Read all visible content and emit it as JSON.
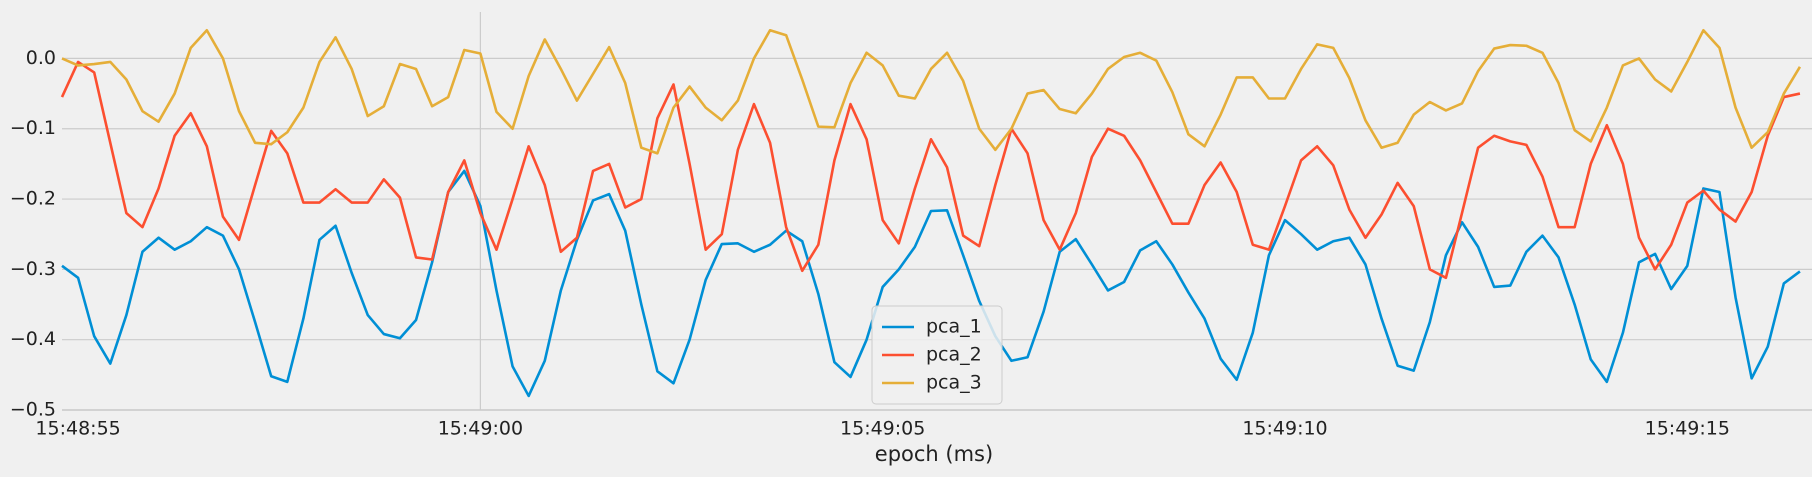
{
  "chart_data": {
    "type": "line",
    "x_label": "epoch (ms)",
    "x": [
      "15:48:54.8",
      "15:48:55.0",
      "15:48:55.2",
      "15:48:55.4",
      "15:48:55.6",
      "15:48:55.8",
      "15:48:56.0",
      "15:48:56.2",
      "15:48:56.4",
      "15:48:56.6",
      "15:48:56.8",
      "15:48:57.0",
      "15:48:57.2",
      "15:48:57.4",
      "15:48:57.6",
      "15:48:57.8",
      "15:48:58.0",
      "15:48:58.2",
      "15:48:58.4",
      "15:48:58.6",
      "15:48:58.8",
      "15:48:59.0",
      "15:48:59.2",
      "15:48:59.4",
      "15:48:59.6",
      "15:48:59.8",
      "15:49:00.0",
      "15:49:00.2",
      "15:49:00.4",
      "15:49:00.6",
      "15:49:00.8",
      "15:49:01.0",
      "15:49:01.2",
      "15:49:01.4",
      "15:49:01.6",
      "15:49:01.8",
      "15:49:02.0",
      "15:49:02.2",
      "15:49:02.4",
      "15:49:02.6",
      "15:49:02.8",
      "15:49:03.0",
      "15:49:03.2",
      "15:49:03.4",
      "15:49:03.6",
      "15:49:03.8",
      "15:49:04.0",
      "15:49:04.2",
      "15:49:04.4",
      "15:49:04.6",
      "15:49:04.8",
      "15:49:05.0",
      "15:49:05.2",
      "15:49:05.4",
      "15:49:05.6",
      "15:49:05.8",
      "15:49:06.0",
      "15:49:06.2",
      "15:49:06.4",
      "15:49:06.6",
      "15:49:06.8",
      "15:49:07.0",
      "15:49:07.2",
      "15:49:07.4",
      "15:49:07.6",
      "15:49:07.8",
      "15:49:08.0",
      "15:49:08.2",
      "15:49:08.4",
      "15:49:08.6",
      "15:49:08.8",
      "15:49:09.0",
      "15:49:09.2",
      "15:49:09.4",
      "15:49:09.6",
      "15:49:09.8",
      "15:49:10.0",
      "15:49:10.2",
      "15:49:10.4",
      "15:49:10.6",
      "15:49:10.8",
      "15:49:11.0",
      "15:49:11.2",
      "15:49:11.4",
      "15:49:11.6",
      "15:49:11.8",
      "15:49:12.0",
      "15:49:12.2",
      "15:49:12.4",
      "15:49:12.6",
      "15:49:12.8",
      "15:49:13.0",
      "15:49:13.2",
      "15:49:13.4",
      "15:49:13.6",
      "15:49:13.8",
      "15:49:14.0",
      "15:49:14.2",
      "15:49:14.4",
      "15:49:14.6",
      "15:49:14.8",
      "15:49:15.0",
      "15:49:15.2",
      "15:49:15.4",
      "15:49:15.6",
      "15:49:15.8",
      "15:49:16.0",
      "15:49:16.2",
      "15:49:16.4"
    ],
    "series": [
      {
        "name": "pca_1",
        "color": "#008fd5",
        "values": [
          -0.295,
          -0.312,
          -0.395,
          -0.434,
          -0.365,
          -0.275,
          -0.255,
          -0.272,
          -0.26,
          -0.24,
          -0.252,
          -0.3,
          -0.375,
          -0.452,
          -0.46,
          -0.37,
          -0.258,
          -0.238,
          -0.305,
          -0.365,
          -0.392,
          -0.398,
          -0.372,
          -0.29,
          -0.19,
          -0.16,
          -0.21,
          -0.33,
          -0.438,
          -0.48,
          -0.43,
          -0.33,
          -0.258,
          -0.202,
          -0.193,
          -0.245,
          -0.35,
          -0.445,
          -0.462,
          -0.4,
          -0.315,
          -0.264,
          -0.263,
          -0.275,
          -0.265,
          -0.245,
          -0.26,
          -0.335,
          -0.432,
          -0.453,
          -0.4,
          -0.325,
          -0.3,
          -0.268,
          -0.217,
          -0.216,
          -0.28,
          -0.345,
          -0.395,
          -0.43,
          -0.425,
          -0.36,
          -0.275,
          -0.257,
          -0.293,
          -0.33,
          -0.318,
          -0.273,
          -0.26,
          -0.293,
          -0.333,
          -0.37,
          -0.427,
          -0.457,
          -0.39,
          -0.28,
          -0.23,
          -0.25,
          -0.272,
          -0.26,
          -0.255,
          -0.293,
          -0.37,
          -0.437,
          -0.444,
          -0.375,
          -0.28,
          -0.233,
          -0.268,
          -0.325,
          -0.323,
          -0.275,
          -0.252,
          -0.283,
          -0.35,
          -0.428,
          -0.46,
          -0.39,
          -0.29,
          -0.278,
          -0.328,
          -0.295,
          -0.185,
          -0.19,
          -0.34,
          -0.455,
          -0.41,
          -0.32,
          -0.303
        ]
      },
      {
        "name": "pca_2",
        "color": "#fc4f30",
        "values": [
          -0.055,
          -0.005,
          -0.02,
          -0.12,
          -0.22,
          -0.24,
          -0.185,
          -0.11,
          -0.078,
          -0.125,
          -0.225,
          -0.258,
          -0.18,
          -0.103,
          -0.135,
          -0.205,
          -0.205,
          -0.186,
          -0.205,
          -0.205,
          -0.172,
          -0.198,
          -0.283,
          -0.286,
          -0.19,
          -0.145,
          -0.22,
          -0.272,
          -0.2,
          -0.125,
          -0.18,
          -0.275,
          -0.255,
          -0.16,
          -0.15,
          -0.212,
          -0.2,
          -0.085,
          -0.037,
          -0.15,
          -0.272,
          -0.25,
          -0.13,
          -0.065,
          -0.12,
          -0.24,
          -0.302,
          -0.265,
          -0.145,
          -0.065,
          -0.115,
          -0.23,
          -0.263,
          -0.185,
          -0.115,
          -0.155,
          -0.252,
          -0.267,
          -0.18,
          -0.1,
          -0.135,
          -0.23,
          -0.272,
          -0.22,
          -0.14,
          -0.1,
          -0.11,
          -0.145,
          -0.19,
          -0.235,
          -0.235,
          -0.18,
          -0.148,
          -0.19,
          -0.265,
          -0.272,
          -0.21,
          -0.145,
          -0.125,
          -0.152,
          -0.215,
          -0.255,
          -0.222,
          -0.177,
          -0.21,
          -0.3,
          -0.312,
          -0.22,
          -0.127,
          -0.11,
          -0.118,
          -0.123,
          -0.168,
          -0.24,
          -0.24,
          -0.15,
          -0.095,
          -0.15,
          -0.255,
          -0.3,
          -0.265,
          -0.205,
          -0.188,
          -0.215,
          -0.232,
          -0.19,
          -0.11,
          -0.055,
          -0.05
        ]
      },
      {
        "name": "pca_3",
        "color": "#e5ae38",
        "values": [
          0.0,
          -0.01,
          -0.008,
          -0.005,
          -0.03,
          -0.075,
          -0.09,
          -0.05,
          0.015,
          0.04,
          0.0,
          -0.075,
          -0.12,
          -0.122,
          -0.105,
          -0.07,
          -0.005,
          0.03,
          -0.015,
          -0.082,
          -0.068,
          -0.008,
          -0.015,
          -0.068,
          -0.055,
          0.012,
          0.007,
          -0.076,
          -0.1,
          -0.025,
          0.027,
          -0.015,
          -0.06,
          -0.022,
          0.016,
          -0.035,
          -0.127,
          -0.135,
          -0.07,
          -0.04,
          -0.07,
          -0.088,
          -0.06,
          0.0,
          0.04,
          0.033,
          -0.03,
          -0.097,
          -0.098,
          -0.035,
          0.008,
          -0.01,
          -0.053,
          -0.057,
          -0.015,
          0.008,
          -0.032,
          -0.1,
          -0.13,
          -0.1,
          -0.05,
          -0.045,
          -0.072,
          -0.078,
          -0.05,
          -0.015,
          0.002,
          0.008,
          -0.003,
          -0.048,
          -0.108,
          -0.125,
          -0.08,
          -0.027,
          -0.027,
          -0.057,
          -0.057,
          -0.015,
          0.02,
          0.015,
          -0.028,
          -0.088,
          -0.127,
          -0.12,
          -0.08,
          -0.062,
          -0.074,
          -0.064,
          -0.018,
          0.014,
          0.019,
          0.018,
          0.008,
          -0.035,
          -0.102,
          -0.118,
          -0.07,
          -0.01,
          0.0,
          -0.03,
          -0.047,
          -0.005,
          0.04,
          0.015,
          -0.07,
          -0.127,
          -0.105,
          -0.05,
          -0.012
        ]
      }
    ],
    "xlim": [
      "15:48:54.8",
      "15:49:16.55"
    ],
    "xticks": [
      "15:48:55",
      "15:49:00",
      "15:49:05",
      "15:49:10",
      "15:49:15"
    ],
    "vlines": [
      "15:49:00"
    ],
    "ylim": [
      -0.5,
      0.066
    ],
    "yticks": [
      {
        "value": -0.5,
        "label": "−0.5"
      },
      {
        "value": -0.4,
        "label": "−0.4"
      },
      {
        "value": -0.3,
        "label": "−0.3"
      },
      {
        "value": -0.2,
        "label": "−0.2"
      },
      {
        "value": -0.1,
        "label": "−0.1"
      },
      {
        "value": 0,
        "label": "0.0"
      }
    ],
    "grid": true,
    "legend": "lower center"
  }
}
